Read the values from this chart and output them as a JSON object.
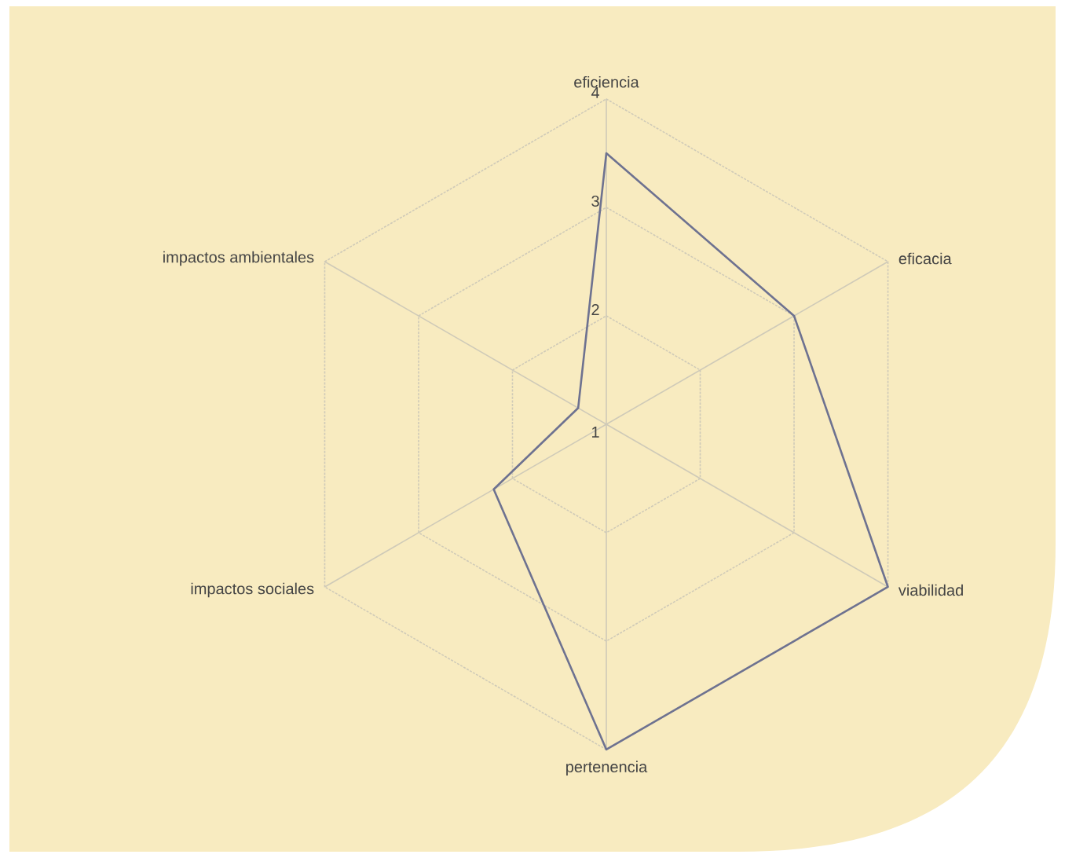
{
  "chart_data": {
    "type": "radar",
    "categories": [
      "eficiencia",
      "eficacia",
      "viabilidad",
      "pertenencia",
      "impactos sociales",
      "impactos ambientales"
    ],
    "series": [
      {
        "color": "#6e7290",
        "values": [
          3.5,
          3,
          4,
          4,
          2.2,
          1.3
        ]
      }
    ],
    "ylim": [
      1,
      4
    ],
    "yticks": [
      1,
      2,
      3,
      4
    ],
    "grid": true
  }
}
